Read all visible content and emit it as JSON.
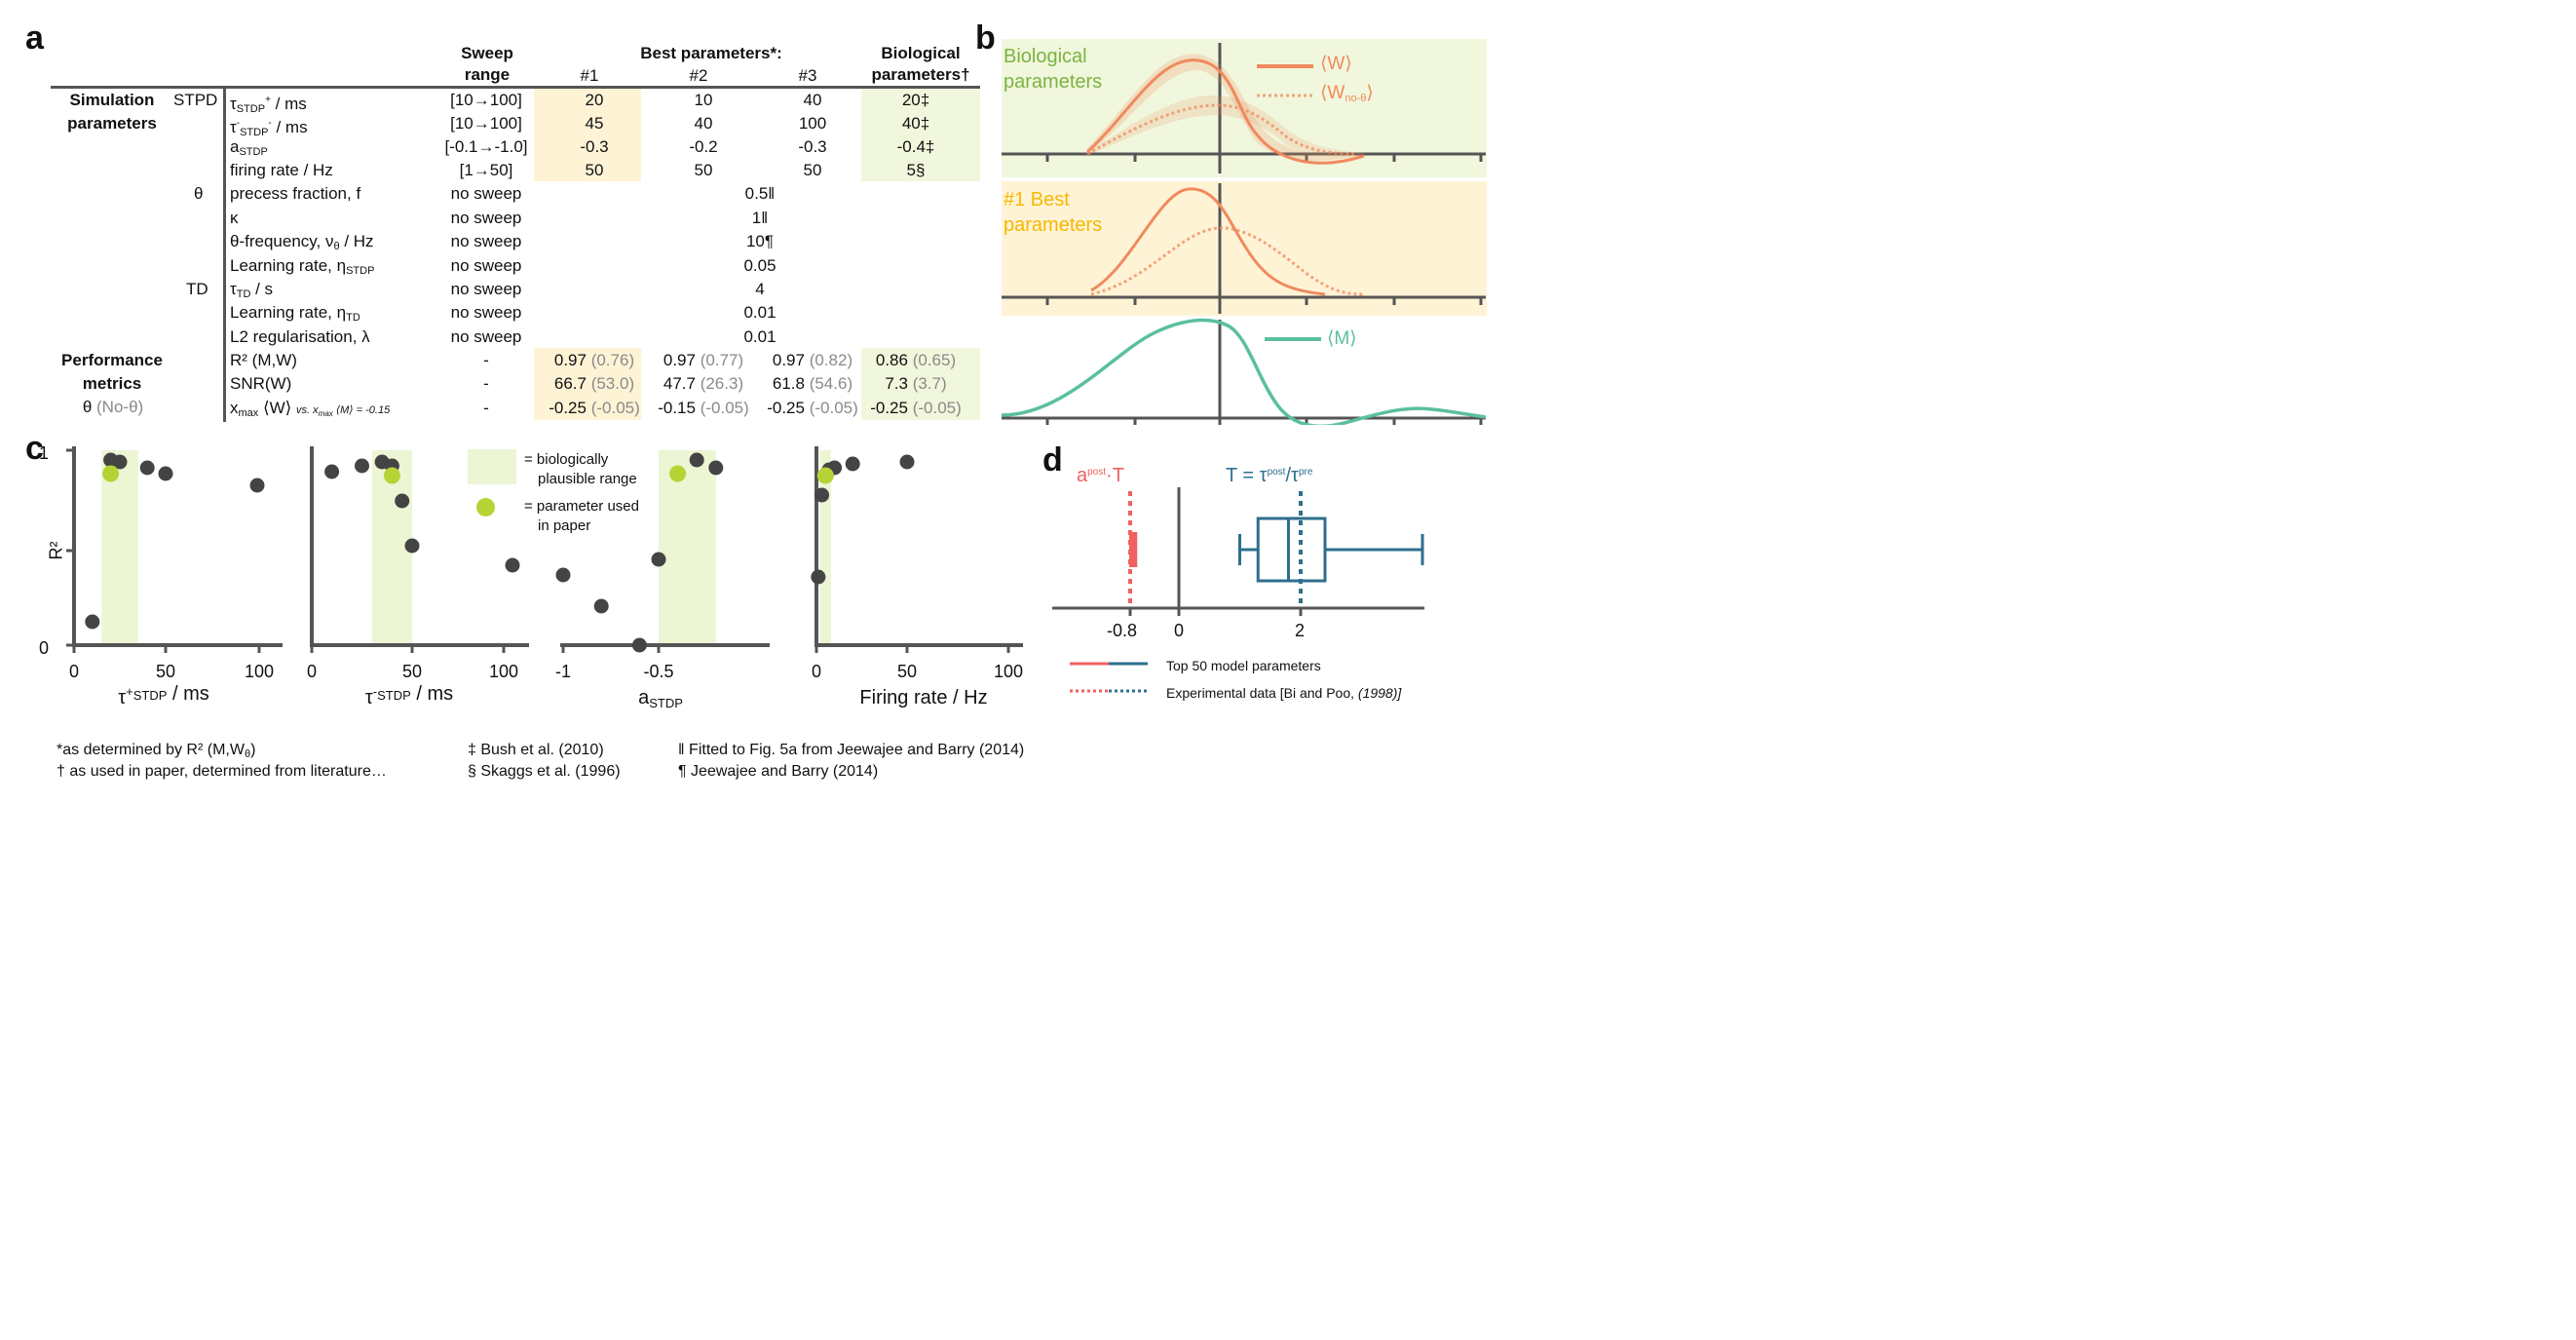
{
  "panel_labels": {
    "a": "a",
    "b": "b",
    "c": "c",
    "d": "d"
  },
  "table": {
    "headers": {
      "sweep_range_1": "Sweep",
      "sweep_range_2": "range",
      "best": "Best parameters*:",
      "b1": "#1",
      "b2": "#2",
      "b3": "#3",
      "bio_1": "Biological",
      "bio_2": "parameters†"
    },
    "groups": {
      "sim_1": "Simulation",
      "sim_2": "parameters",
      "stpd": "STPD",
      "theta": "θ",
      "td": "TD",
      "perf_1": "Performance",
      "perf_2": "metrics",
      "perf_3a": "θ",
      "perf_3b": "(No-θ)"
    },
    "rows": [
      {
        "name": "τSTDP+ / ms",
        "sweep": "[10→100]",
        "b1": "20",
        "b2": "10",
        "b3": "40",
        "bio": "20‡"
      },
      {
        "name": "τ-STDP- / ms",
        "sweep": "[10→100]",
        "b1": "45",
        "b2": "40",
        "b3": "100",
        "bio": "40‡"
      },
      {
        "name": "aSTDP",
        "sweep": "[-0.1→-1.0]",
        "b1": "-0.3",
        "b2": "-0.2",
        "b3": "-0.3",
        "bio": "-0.4‡"
      },
      {
        "name": "firing rate / Hz",
        "sweep": "[1→50]",
        "b1": "50",
        "b2": "50",
        "b3": "50",
        "bio": "5§"
      },
      {
        "name": "precess fraction, f",
        "sweep": "no sweep",
        "shared": "0.5‖"
      },
      {
        "name": "κ",
        "sweep": "no sweep",
        "shared": "1‖"
      },
      {
        "name": "θ-frequency, νθ / Hz",
        "sweep": "no sweep",
        "shared": "10¶"
      },
      {
        "name": "Learning rate, ηSTDP",
        "sweep": "no sweep",
        "shared": "0.05"
      },
      {
        "name": "τTD / s",
        "sweep": "no sweep",
        "shared": "4"
      },
      {
        "name": "Learning rate, ηTD",
        "sweep": "no sweep",
        "shared": "0.01"
      },
      {
        "name": "L2 regularisation, λ",
        "sweep": "no sweep",
        "shared": "0.01"
      },
      {
        "name": "R² (M,W)",
        "sweep": "-",
        "b1": "0.97",
        "b1g": "(0.76)",
        "b2": "0.97",
        "b2g": "(0.77)",
        "b3": "0.97",
        "b3g": "(0.82)",
        "bio": "0.86",
        "biog": "(0.65)"
      },
      {
        "name": "SNR(W)",
        "sweep": "-",
        "b1": "66.7",
        "b1g": "(53.0)",
        "b2": "47.7",
        "b2g": "(26.3)",
        "b3": "61.8",
        "b3g": "(54.6)",
        "bio": "7.3",
        "biog": "(3.7)"
      },
      {
        "name": "xmax ⟨W⟩",
        "note": "vs. xmax ⟨M⟩ = -0.15",
        "sweep": "-",
        "b1": "-0.25",
        "b1g": "(-0.05)",
        "b2": "-0.15",
        "b2g": "(-0.05)",
        "b3": "-0.25",
        "b3g": "(-0.05)",
        "bio": "-0.25",
        "biog": "(-0.05)"
      }
    ]
  },
  "panel_b": {
    "bio_label_1": "Biological",
    "bio_label_2": "parameters",
    "best_label_1": "#1 Best",
    "best_label_2": "parameters",
    "legend_W": "⟨W⟩",
    "legend_Wnotheta": "⟨W",
    "legend_Wnotheta_sub": "no-θ",
    "legend_Wnotheta_close": "⟩",
    "legend_M": "⟨M⟩",
    "colors": {
      "W": "#f08a5d",
      "M": "#5bbf9f",
      "bio_bg": "#f0f7dc",
      "best_bg": "#fff3d6"
    }
  },
  "panel_c": {
    "legend_range_1": "= biologically",
    "legend_range_2": "plausible range",
    "legend_param_1": "= parameter used",
    "legend_param_2": "in paper",
    "ylabel": "R²",
    "y_ticks": [
      "1",
      "0"
    ],
    "colors": {
      "dot": "#444444",
      "paper": "#b5d334",
      "range": "#ecf5d4"
    }
  },
  "chart_data": [
    {
      "type": "scatter",
      "xlabel": "τ+STDP / ms",
      "ylabel": "R²",
      "xlim": [
        0,
        110
      ],
      "ylim": [
        0,
        1
      ],
      "x_ticks": [
        "0",
        "50",
        "100"
      ],
      "plausible_range": [
        15,
        35
      ],
      "points": [
        [
          10,
          0.12
        ],
        [
          20,
          0.95
        ],
        [
          25,
          0.94
        ],
        [
          40,
          0.91
        ],
        [
          50,
          0.88
        ],
        [
          100,
          0.82
        ]
      ],
      "paper_point": [
        20,
        0.88
      ]
    },
    {
      "type": "scatter",
      "xlabel": "τ-STDP / ms",
      "ylabel": "R²",
      "xlim": [
        0,
        110
      ],
      "ylim": [
        0,
        1
      ],
      "x_ticks": [
        "0",
        "50",
        "100"
      ],
      "plausible_range": [
        30,
        50
      ],
      "points": [
        [
          10,
          0.89
        ],
        [
          25,
          0.92
        ],
        [
          35,
          0.94
        ],
        [
          40,
          0.92
        ],
        [
          45,
          0.74
        ],
        [
          50,
          0.51
        ],
        [
          100,
          0.41
        ]
      ],
      "paper_point": [
        40,
        0.87
      ]
    },
    {
      "type": "scatter",
      "xlabel": "aSTDP",
      "ylabel": "R²",
      "xlim": [
        -1.1,
        -0.1
      ],
      "ylim": [
        0,
        1
      ],
      "x_ticks": [
        "-1",
        "-0.5"
      ],
      "plausible_range": [
        -0.5,
        -0.2
      ],
      "points": [
        [
          -1.0,
          0.36
        ],
        [
          -0.8,
          0.2
        ],
        [
          -0.6,
          0.0
        ],
        [
          -0.5,
          0.44
        ],
        [
          -0.3,
          0.95
        ],
        [
          -0.2,
          0.91
        ]
      ],
      "paper_point": [
        -0.4,
        0.88
      ]
    },
    {
      "type": "scatter",
      "xlabel": "Firing rate / Hz",
      "ylabel": "R²",
      "xlim": [
        0,
        50
      ],
      "ylim": [
        0,
        1
      ],
      "x_ticks": [
        "0",
        "50",
        "100"
      ],
      "plausible_range": [
        2,
        8
      ],
      "points": [
        [
          1,
          0.35
        ],
        [
          3,
          0.77
        ],
        [
          7,
          0.9
        ],
        [
          10,
          0.91
        ],
        [
          20,
          0.93
        ],
        [
          50,
          0.94
        ]
      ],
      "paper_point": [
        5,
        0.87
      ]
    },
    {
      "type": "box",
      "series": [
        {
          "name": "apost·T",
          "median": -0.75,
          "q1": -0.8,
          "q3": -0.7,
          "whisker_low": -0.85,
          "whisker_high": -0.65,
          "experimental": -0.8
        },
        {
          "name": "T = τpost/τpre",
          "median": 1.8,
          "q1": 1.3,
          "q3": 2.4,
          "whisker_low": 1.0,
          "whisker_high": 4.0,
          "experimental": 2.0
        }
      ],
      "x_ticks": [
        "-0.8",
        "0",
        "2"
      ],
      "label_a": "a",
      "label_a_sup": "post",
      "label_a_tail": "·T",
      "label_t": "T = τ",
      "label_t_sup1": "post",
      "label_t_mid": "/τ",
      "label_t_sup2": "pre",
      "legend_model": "Top 50 model parameters",
      "legend_exp": "Experimental data [Bi and Poo, ",
      "legend_exp_year": "(1998)]",
      "colors": {
        "a": "#f06060",
        "t": "#2e6f8e"
      }
    }
  ],
  "footnotes": {
    "f1": "*as determined by R² (M,Wθ)",
    "f2": "† as used in paper, determined from literature…",
    "f3": "‡ Bush et al. (2010)",
    "f4": "§ Skaggs et al. (1996)",
    "f5": "‖ Fitted to Fig. 5a from Jeewajee and Barry (2014)",
    "f6": "¶ Jeewajee and Barry (2014)"
  }
}
